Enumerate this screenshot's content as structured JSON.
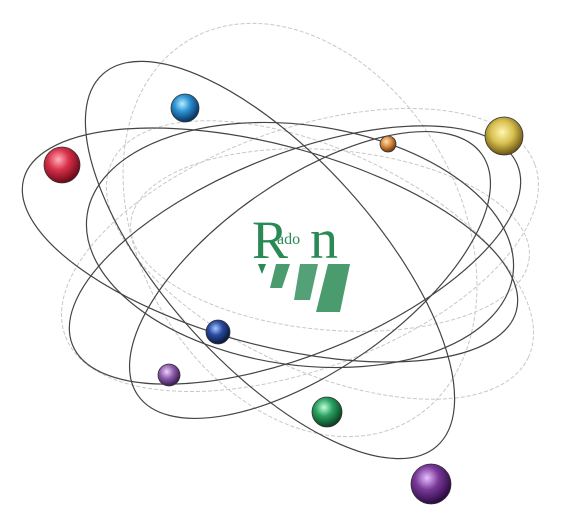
{
  "logo": {
    "letters": [
      "R",
      "ado",
      "n"
    ]
  }
}
